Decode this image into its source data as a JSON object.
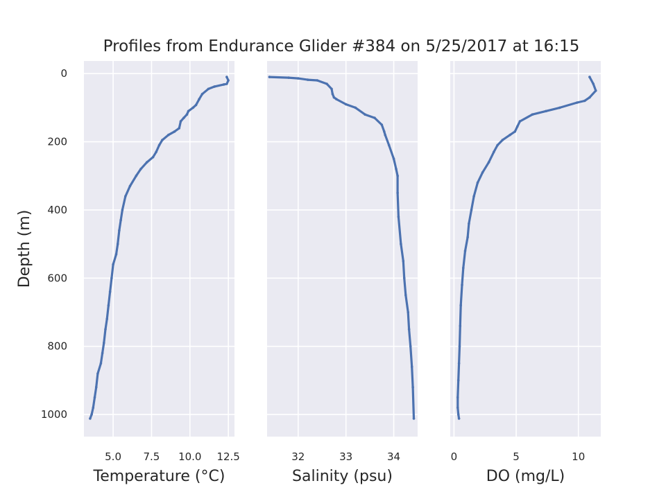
{
  "chart_data": {
    "type": "line",
    "title": "Profiles from Endurance Glider #384 on 5/25/2017 at 16:15",
    "ylabel": "Depth (m)",
    "ylim": [
      1065,
      -37
    ],
    "y_ticks": [
      "0",
      "200",
      "400",
      "600",
      "800",
      "1000"
    ],
    "y_tick_values": [
      0,
      200,
      400,
      600,
      800,
      1000
    ],
    "grid": true,
    "panels": [
      {
        "xlabel": "Temperature (°C)",
        "xlim": [
          3.1,
          12.9
        ],
        "x_ticks": [
          "5.0",
          "7.5",
          "10.0",
          "12.5"
        ],
        "x_tick_values": [
          5.0,
          7.5,
          10.0,
          12.5
        ],
        "series": [
          {
            "x": [
              12.4,
              12.5,
              12.4,
              12.2,
              11.6,
              11.2,
              10.8,
              10.6,
              10.4,
              10.2,
              9.9,
              9.8,
              9.6,
              9.4,
              9.3,
              9.0,
              8.6,
              8.2,
              8.0,
              7.8,
              7.6,
              7.2,
              6.8,
              6.5,
              6.1,
              5.8,
              5.6,
              5.5,
              5.4,
              5.3,
              5.2,
              5.0,
              4.9,
              4.8,
              4.7,
              4.6,
              4.5,
              4.4,
              4.3,
              4.2,
              4.0,
              3.9,
              3.8,
              3.7,
              3.6,
              3.5
            ],
            "y": [
              10,
              20,
              30,
              32,
              38,
              45,
              60,
              75,
              92,
              100,
              110,
              120,
              130,
              140,
              160,
              170,
              180,
              195,
              210,
              230,
              245,
              260,
              280,
              300,
              330,
              360,
              400,
              430,
              460,
              500,
              530,
              560,
              600,
              640,
              680,
              720,
              750,
              790,
              820,
              850,
              880,
              920,
              950,
              980,
              1000,
              1012
            ]
          }
        ]
      },
      {
        "xlabel": "Salinity (psu)",
        "xlim": [
          31.35,
          34.5
        ],
        "x_ticks": [
          "32",
          "33",
          "34"
        ],
        "x_tick_values": [
          32,
          33,
          34
        ],
        "series": [
          {
            "x": [
              31.4,
              31.8,
              32.0,
              32.2,
              32.4,
              32.6,
              32.7,
              32.72,
              32.75,
              32.8,
              33.0,
              33.2,
              33.4,
              33.6,
              33.75,
              33.8,
              33.82,
              33.9,
              34.0,
              34.05,
              34.08,
              34.08,
              34.1,
              34.15,
              34.2,
              34.22,
              34.25,
              34.3,
              34.32,
              34.35,
              34.38,
              34.4,
              34.42
            ],
            "y": [
              10,
              12,
              14,
              18,
              20,
              30,
              45,
              60,
              70,
              75,
              90,
              100,
              120,
              130,
              150,
              170,
              180,
              210,
              250,
              280,
              300,
              350,
              420,
              500,
              550,
              600,
              650,
              700,
              750,
              800,
              860,
              920,
              1012
            ]
          }
        ]
      },
      {
        "xlabel": "DO (mg/L)",
        "xlim": [
          -0.3,
          11.8
        ],
        "x_ticks": [
          "0",
          "5",
          "10"
        ],
        "x_tick_values": [
          0,
          5,
          10
        ],
        "series": [
          {
            "x": [
              10.9,
              11.2,
              11.4,
              10.9,
              10.5,
              9.9,
              8.5,
              7.4,
              6.3,
              5.3,
              5.1,
              4.9,
              4.5,
              3.9,
              3.5,
              3.2,
              2.8,
              2.3,
              1.9,
              1.6,
              1.4,
              1.2,
              1.1,
              0.9,
              0.75,
              0.65,
              0.55,
              0.5,
              0.45,
              0.4,
              0.35,
              0.3,
              0.3,
              0.35,
              0.4
            ],
            "y": [
              10,
              30,
              50,
              70,
              80,
              85,
              100,
              110,
              120,
              140,
              155,
              170,
              180,
              195,
              210,
              230,
              260,
              290,
              320,
              360,
              400,
              440,
              480,
              520,
              570,
              620,
              680,
              740,
              800,
              850,
              900,
              950,
              980,
              1000,
              1012
            ]
          }
        ]
      }
    ]
  }
}
